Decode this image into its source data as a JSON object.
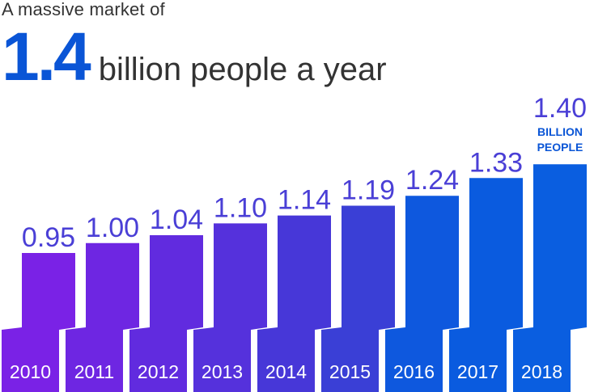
{
  "intro": "A massive market of",
  "headline": {
    "value": "1.4",
    "text": "billion people a year"
  },
  "chart_data": {
    "type": "bar",
    "categories": [
      "2010",
      "2011",
      "2012",
      "2013",
      "2014",
      "2015",
      "2016",
      "2017",
      "2018"
    ],
    "values": [
      0.95,
      1.0,
      1.04,
      1.1,
      1.14,
      1.19,
      1.24,
      1.33,
      1.4
    ],
    "labels": [
      "0.95",
      "1.00",
      "1.04",
      "1.10",
      "1.14",
      "1.19",
      "1.24",
      "1.33",
      "1.40"
    ],
    "annotation": [
      "BILLION",
      "PEOPLE"
    ],
    "colors": [
      "#7a22e6",
      "#6e26e2",
      "#612bdf",
      "#5531dc",
      "#4737d8",
      "#3a3fd6",
      "#0e58de",
      "#0a5bdf",
      "#0a5ee0"
    ],
    "label_color": "#4a3fd6",
    "annotation_color": "#0a55d6"
  }
}
